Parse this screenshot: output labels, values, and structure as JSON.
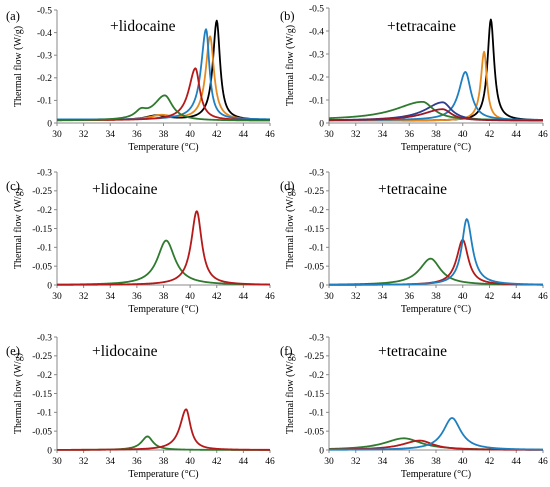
{
  "colors": {
    "black": "#000000",
    "orange": "#e58a1f",
    "blue": "#1f7fc1",
    "red": "#b5191a",
    "green": "#2f7a2e",
    "navy": "#2e3e8c",
    "darkred": "#9a1a2a"
  },
  "chart_data": [
    {
      "type": "line",
      "panel": "(a)",
      "annotation": "+lidocaine",
      "xlabel": "Temperature (°C)",
      "ylabel": "Thermal flow (W/g)",
      "xlim": [
        30,
        46
      ],
      "ylim": [
        0,
        -0.5
      ],
      "x_ticks": [
        "30",
        "32",
        "34",
        "36",
        "38",
        "40",
        "42",
        "44",
        "46"
      ],
      "y_ticks": [
        "0",
        "-0.1",
        "-0.2",
        "-0.3",
        "-0.4",
        "-0.5"
      ],
      "series": [
        {
          "color": "black",
          "baseline": 0.012,
          "peaks": [
            {
              "center": 42.0,
              "height": 0.44,
              "w_low": 0.35,
              "w_high": 0.3
            },
            {
              "center": 37.5,
              "height": 0.02,
              "w_low": 1.0,
              "w_high": 1.0
            }
          ]
        },
        {
          "color": "orange",
          "baseline": 0.012,
          "peaks": [
            {
              "center": 41.5,
              "height": 0.37,
              "w_low": 0.4,
              "w_high": 0.35
            },
            {
              "center": 37.8,
              "height": 0.02,
              "w_low": 1.0,
              "w_high": 1.0
            }
          ]
        },
        {
          "color": "blue",
          "baseline": 0.015,
          "peaks": [
            {
              "center": 41.2,
              "height": 0.4,
              "w_low": 0.45,
              "w_high": 0.3
            }
          ]
        },
        {
          "color": "red",
          "baseline": 0.012,
          "peaks": [
            {
              "center": 40.4,
              "height": 0.23,
              "w_low": 0.6,
              "w_high": 0.4
            }
          ]
        },
        {
          "color": "green",
          "baseline": 0.01,
          "peaks": [
            {
              "center": 38.1,
              "height": 0.11,
              "w_low": 1.0,
              "w_high": 0.7
            },
            {
              "center": 36.3,
              "height": 0.03,
              "w_low": 0.5,
              "w_high": 0.5
            }
          ]
        }
      ]
    },
    {
      "type": "line",
      "panel": "(b)",
      "annotation": "+tetracaine",
      "xlabel": "Temperature (°C)",
      "ylabel": "Thermal flow (W/g)",
      "xlim": [
        30,
        46
      ],
      "ylim": [
        0,
        -0.5
      ],
      "x_ticks": [
        "30",
        "32",
        "34",
        "36",
        "38",
        "40",
        "42",
        "44",
        "46"
      ],
      "y_ticks": [
        "0",
        "-0.1",
        "-0.2",
        "-0.3",
        "-0.4",
        "-0.5"
      ],
      "series": [
        {
          "color": "black",
          "baseline": 0.01,
          "peaks": [
            {
              "center": 42.1,
              "height": 0.44,
              "w_low": 0.3,
              "w_high": 0.3
            }
          ]
        },
        {
          "color": "orange",
          "baseline": 0.01,
          "peaks": [
            {
              "center": 41.6,
              "height": 0.3,
              "w_low": 0.3,
              "w_high": 0.25
            }
          ]
        },
        {
          "color": "blue",
          "baseline": 0.012,
          "peaks": [
            {
              "center": 40.2,
              "height": 0.21,
              "w_low": 0.6,
              "w_high": 0.5
            }
          ]
        },
        {
          "color": "navy",
          "baseline": 0.01,
          "peaks": [
            {
              "center": 38.5,
              "height": 0.08,
              "w_low": 1.6,
              "w_high": 0.8
            }
          ]
        },
        {
          "color": "green",
          "baseline": 0.012,
          "peaks": [
            {
              "center": 37.0,
              "height": 0.08,
              "w_low": 2.5,
              "w_high": 1.0
            }
          ]
        },
        {
          "color": "darkred",
          "baseline": 0.01,
          "peaks": [
            {
              "center": 38.5,
              "height": 0.05,
              "w_low": 1.8,
              "w_high": 0.8
            }
          ]
        }
      ]
    },
    {
      "type": "line",
      "panel": "(c)",
      "annotation": "+lidocaine",
      "xlabel": "Temperature (°C)",
      "ylabel": "Thermal flow (W/g)",
      "xlim": [
        30,
        46
      ],
      "ylim": [
        0,
        -0.3
      ],
      "x_ticks": [
        "30",
        "32",
        "34",
        "36",
        "38",
        "40",
        "42",
        "44",
        "46"
      ],
      "y_ticks": [
        "0",
        "-0.05",
        "-0.1",
        "-0.15",
        "-0.2",
        "-0.25",
        "-0.3"
      ],
      "series": [
        {
          "color": "green",
          "baseline": 0,
          "peaks": [
            {
              "center": 38.2,
              "height": 0.118,
              "w_low": 0.8,
              "w_high": 0.8
            }
          ]
        },
        {
          "color": "red",
          "baseline": 0,
          "peaks": [
            {
              "center": 40.5,
              "height": 0.196,
              "w_low": 0.5,
              "w_high": 0.45
            }
          ]
        }
      ]
    },
    {
      "type": "line",
      "panel": "(d)",
      "annotation": "+tetracaine",
      "xlabel": "Temperature (°C)",
      "ylabel": "Thermal flow (W/g)",
      "xlim": [
        30,
        46
      ],
      "ylim": [
        0,
        -0.3
      ],
      "x_ticks": [
        "30",
        "32",
        "34",
        "36",
        "38",
        "40",
        "42",
        "44",
        "46"
      ],
      "y_ticks": [
        "0",
        "-0.05",
        "-0.1",
        "-0.15",
        "-0.2",
        "-0.25",
        "-0.3"
      ],
      "series": [
        {
          "color": "green",
          "baseline": 0,
          "peaks": [
            {
              "center": 37.6,
              "height": 0.07,
              "w_low": 1.0,
              "w_high": 0.9
            }
          ]
        },
        {
          "color": "red",
          "baseline": 0,
          "peaks": [
            {
              "center": 40.0,
              "height": 0.12,
              "w_low": 0.55,
              "w_high": 0.5
            }
          ]
        },
        {
          "color": "blue",
          "baseline": 0,
          "peaks": [
            {
              "center": 40.3,
              "height": 0.175,
              "w_low": 0.45,
              "w_high": 0.5
            }
          ]
        }
      ]
    },
    {
      "type": "line",
      "panel": "(e)",
      "annotation": "+lidocaine",
      "xlabel": "Temperature (°C)",
      "ylabel": "Thermal flow (W/g)",
      "xlim": [
        30,
        46
      ],
      "ylim": [
        0,
        -0.3
      ],
      "x_ticks": [
        "30",
        "32",
        "34",
        "36",
        "38",
        "40",
        "42",
        "44",
        "46"
      ],
      "y_ticks": [
        "0",
        "-0.05",
        "-0.1",
        "-0.15",
        "-0.2",
        "-0.25",
        "-0.3"
      ],
      "series": [
        {
          "color": "green",
          "baseline": 0,
          "peaks": [
            {
              "center": 36.8,
              "height": 0.036,
              "w_low": 0.55,
              "w_high": 0.5
            }
          ]
        },
        {
          "color": "red",
          "baseline": 0,
          "peaks": [
            {
              "center": 39.7,
              "height": 0.108,
              "w_low": 0.55,
              "w_high": 0.4
            }
          ]
        }
      ]
    },
    {
      "type": "line",
      "panel": "(f)",
      "annotation": "+tetracaine",
      "xlabel": "Temperature (°C)",
      "ylabel": "Thermal flow (W/g)",
      "xlim": [
        30,
        46
      ],
      "ylim": [
        0,
        -0.3
      ],
      "x_ticks": [
        "30",
        "32",
        "34",
        "36",
        "38",
        "40",
        "42",
        "44",
        "46"
      ],
      "y_ticks": [
        "0",
        "-0.05",
        "-0.1",
        "-0.15",
        "-0.2",
        "-0.25",
        "-0.3"
      ],
      "series": [
        {
          "color": "green",
          "baseline": 0,
          "peaks": [
            {
              "center": 35.6,
              "height": 0.031,
              "w_low": 1.8,
              "w_high": 1.6
            }
          ]
        },
        {
          "color": "red",
          "baseline": 0,
          "peaks": [
            {
              "center": 36.8,
              "height": 0.025,
              "w_low": 1.6,
              "w_high": 1.2
            }
          ]
        },
        {
          "color": "blue",
          "baseline": 0,
          "peaks": [
            {
              "center": 39.2,
              "height": 0.085,
              "w_low": 0.8,
              "w_high": 0.8
            }
          ]
        }
      ]
    }
  ]
}
